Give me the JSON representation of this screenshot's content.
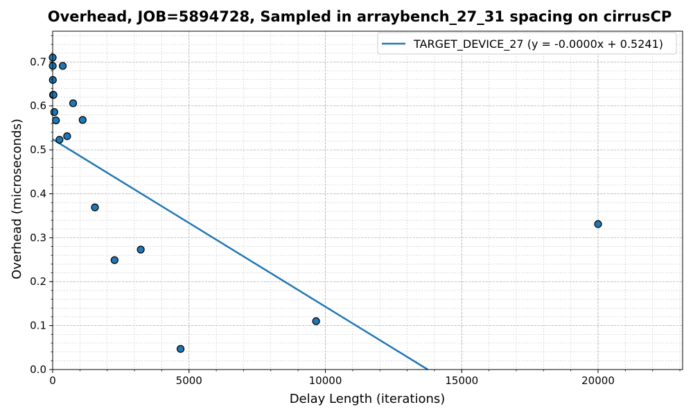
{
  "chart_data": {
    "type": "scatter",
    "title": "Overhead, JOB=5894728, Sampled in arraybench_27_31 spacing on cirrusCP",
    "xlabel": "Delay Length (iterations)",
    "ylabel": "Overhead (microseconds)",
    "xlim": [
      0,
      23100
    ],
    "ylim": [
      0,
      0.77
    ],
    "xticks": [
      0,
      5000,
      10000,
      15000,
      20000
    ],
    "xtick_labels": [
      "0",
      "5000",
      "10000",
      "15000",
      "20000"
    ],
    "yticks": [
      0.0,
      0.1,
      0.2,
      0.3,
      0.4,
      0.5,
      0.6,
      0.7
    ],
    "ytick_labels": [
      "0.0",
      "0.1",
      "0.2",
      "0.3",
      "0.4",
      "0.5",
      "0.6",
      "0.7"
    ],
    "grid": true,
    "legend_position": "top-right",
    "series": [
      {
        "kind": "points",
        "color": "#1f77b4",
        "points": [
          {
            "x": 1,
            "y": 0.71
          },
          {
            "x": 3,
            "y": 0.691
          },
          {
            "x": 7,
            "y": 0.659
          },
          {
            "x": 15,
            "y": 0.625
          },
          {
            "x": 30,
            "y": 0.625
          },
          {
            "x": 60,
            "y": 0.586
          },
          {
            "x": 120,
            "y": 0.567
          },
          {
            "x": 250,
            "y": 0.523
          },
          {
            "x": 370,
            "y": 0.691
          },
          {
            "x": 530,
            "y": 0.531
          },
          {
            "x": 750,
            "y": 0.606
          },
          {
            "x": 1100,
            "y": 0.568
          },
          {
            "x": 1550,
            "y": 0.369
          },
          {
            "x": 2270,
            "y": 0.249
          },
          {
            "x": 3230,
            "y": 0.273
          },
          {
            "x": 4690,
            "y": 0.047
          },
          {
            "x": 9660,
            "y": 0.11
          },
          {
            "x": 20000,
            "y": 0.331
          }
        ]
      },
      {
        "kind": "fit-line",
        "name": "TARGET_DEVICE_27 (y = -0.0000x + 0.5241)",
        "color": "#1f77b4",
        "slope": -3.81e-05,
        "intercept": 0.5241
      }
    ]
  }
}
